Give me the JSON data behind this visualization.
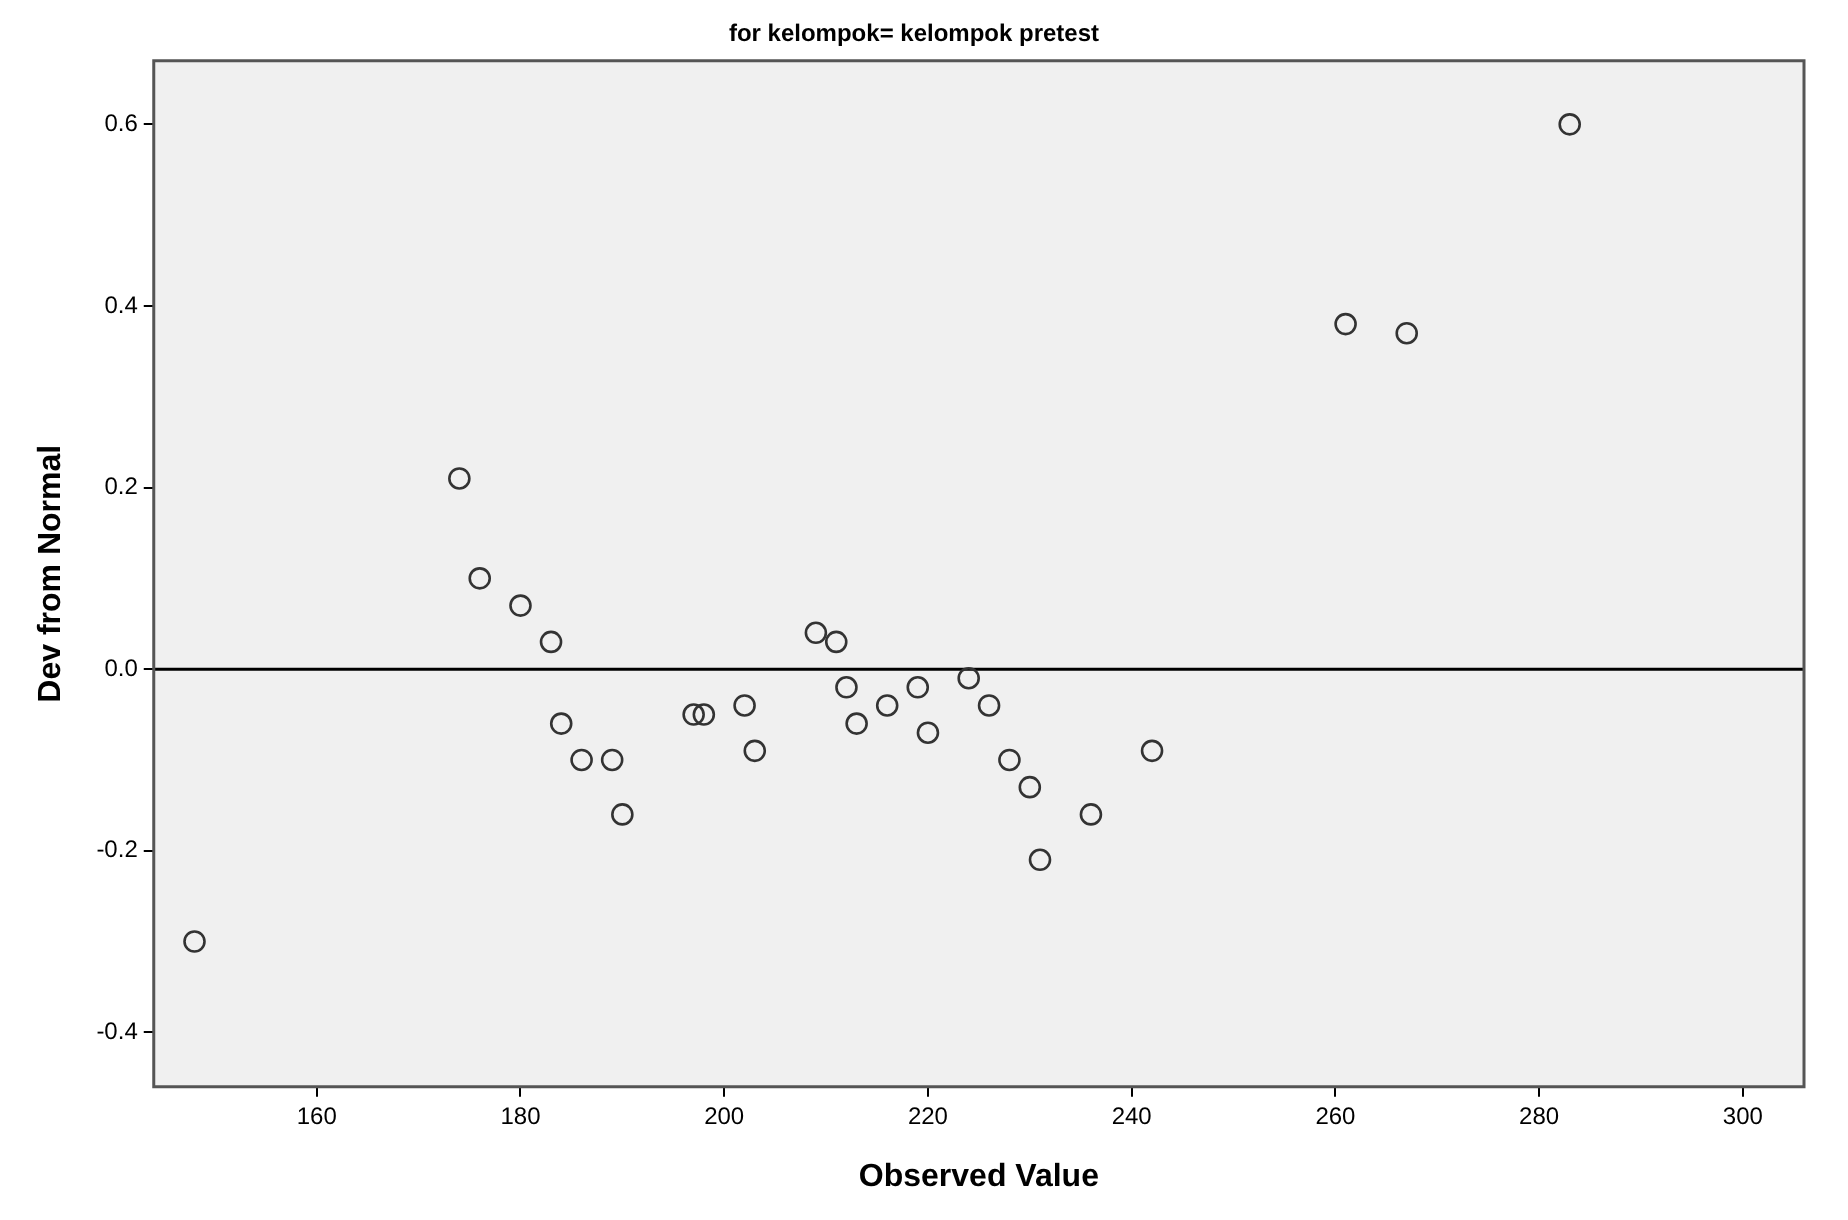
{
  "chart_data": {
    "type": "scatter",
    "title": "for kelompok= kelompok pretest",
    "xlabel": "Observed Value",
    "ylabel": "Dev from Normal",
    "x": [
      148,
      174,
      176,
      180,
      183,
      184,
      186,
      189,
      190,
      197,
      198,
      202,
      203,
      209,
      211,
      212,
      213,
      216,
      219,
      220,
      224,
      226,
      228,
      230,
      231,
      236,
      242,
      261,
      267,
      283
    ],
    "series": [
      {
        "color": "#333333",
        "values": [
          -0.3,
          0.21,
          0.1,
          0.07,
          0.03,
          -0.06,
          -0.1,
          -0.1,
          -0.16,
          -0.05,
          -0.05,
          -0.04,
          -0.09,
          0.04,
          0.03,
          -0.02,
          -0.06,
          -0.04,
          -0.02,
          -0.07,
          -0.01,
          -0.04,
          -0.1,
          -0.13,
          -0.21,
          -0.16,
          -0.09,
          0.38,
          0.37,
          0.6
        ]
      }
    ],
    "xlim": [
      144,
      306
    ],
    "xticks": [
      160,
      180,
      200,
      220,
      240,
      260,
      280,
      300
    ],
    "ylim": [
      -0.46,
      0.67
    ],
    "yticks": [
      {
        "value": -0.4,
        "label": "-0.4"
      },
      {
        "value": -0.2,
        "label": "-0.2"
      },
      {
        "value": 0,
        "label": "0.0"
      },
      {
        "value": 0.2,
        "label": "0.2"
      },
      {
        "value": 0.4,
        "label": "0.4"
      },
      {
        "value": 0.6,
        "label": "0.6"
      }
    ],
    "ref_lines": [
      {
        "axis": "y",
        "value": 0,
        "color": "#000000"
      }
    ],
    "grid": false,
    "legend": false,
    "marker": "circle"
  }
}
